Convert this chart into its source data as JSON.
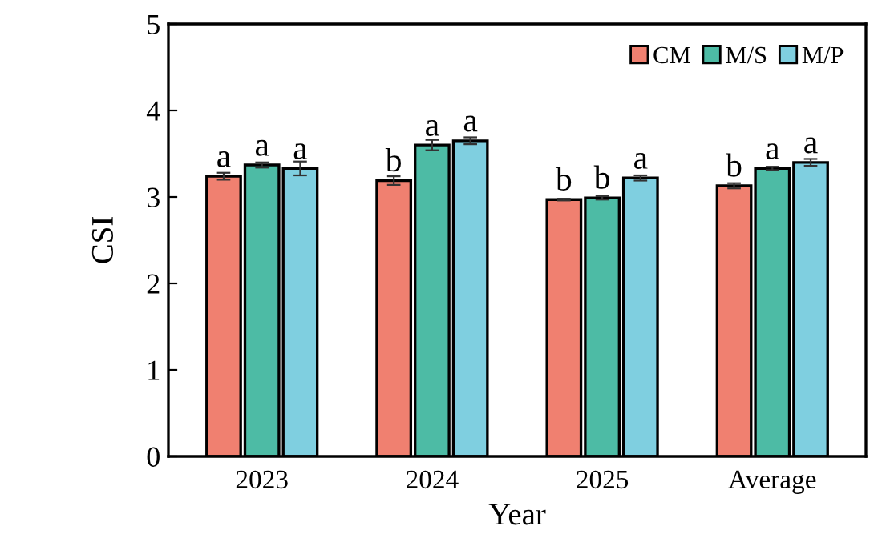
{
  "chart_data": {
    "type": "bar",
    "xlabel": "Year",
    "ylabel": "CSI",
    "categories": [
      "2023",
      "2024",
      "2025",
      "Average"
    ],
    "series": [
      {
        "name": "CM",
        "color": "#f08070",
        "values": [
          3.24,
          3.19,
          2.97,
          3.13
        ],
        "errors": [
          0.04,
          0.05,
          0.01,
          0.03
        ],
        "value_labels": [
          "a",
          "b",
          "b",
          "b"
        ]
      },
      {
        "name": "M/S",
        "color": "#4dbba5",
        "values": [
          3.37,
          3.6,
          2.99,
          3.33
        ],
        "errors": [
          0.03,
          0.06,
          0.02,
          0.02
        ],
        "value_labels": [
          "a",
          "a",
          "b",
          "a"
        ]
      },
      {
        "name": "M/P",
        "color": "#7fcfe0",
        "values": [
          3.33,
          3.65,
          3.22,
          3.4
        ],
        "errors": [
          0.08,
          0.04,
          0.03,
          0.04
        ],
        "value_labels": [
          "a",
          "a",
          "a",
          "a"
        ]
      }
    ],
    "ylim": [
      0,
      5
    ],
    "yticks": [
      0,
      1,
      2,
      3,
      4,
      5
    ],
    "grid": false,
    "legend": "top right"
  }
}
